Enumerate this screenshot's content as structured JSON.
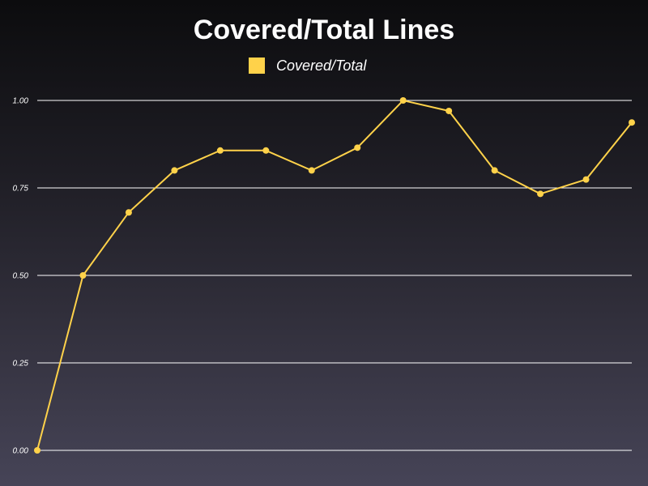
{
  "chart_data": {
    "type": "line",
    "title": "Covered/Total Lines",
    "xlabel": "",
    "ylabel": "",
    "ylim": [
      0,
      1
    ],
    "y_ticks": [
      "0.00",
      "0.25",
      "0.50",
      "0.75",
      "1.00"
    ],
    "grid": true,
    "legend_position": "top-center",
    "series": [
      {
        "name": "Covered/Total",
        "color": "#ffd24a",
        "values": [
          0.0,
          0.5,
          0.68,
          0.8,
          0.857,
          0.857,
          0.8,
          0.865,
          1.0,
          0.97,
          0.8,
          0.733,
          0.774,
          0.937
        ]
      }
    ]
  }
}
